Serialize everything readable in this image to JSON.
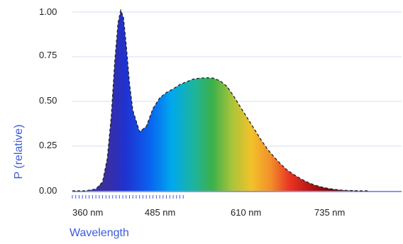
{
  "colors": {
    "axis": "#3b5bdb",
    "grid": "#d9def2",
    "label": "#3b5bdb",
    "outline": "#222222"
  },
  "chart_data": {
    "type": "area",
    "title": "",
    "xlabel": "Wavelength",
    "ylabel": "P (relative)",
    "xlim": [
      360,
      850
    ],
    "ylim": [
      0,
      1.0
    ],
    "x_ticks": [
      "360 nm",
      "485 nm",
      "610 nm",
      "735 nm"
    ],
    "y_ticks": [
      "0.00",
      "0.25",
      "0.50",
      "0.75",
      "1.00"
    ],
    "grid": true,
    "series": [
      {
        "x": [
          360,
          380,
          395,
          405,
          412,
          418,
          423,
          428,
          432,
          436,
          440,
          445,
          450,
          460,
          470,
          480,
          490,
          500,
          510,
          520,
          530,
          540,
          550,
          560,
          570,
          580,
          590,
          600,
          610,
          620,
          630,
          640,
          650,
          660,
          670,
          680,
          690,
          700,
          710,
          720,
          730,
          740,
          750,
          760,
          770,
          780,
          790,
          800
        ],
        "y": [
          0,
          0,
          0.01,
          0.05,
          0.18,
          0.42,
          0.72,
          0.94,
          1.01,
          0.97,
          0.82,
          0.6,
          0.45,
          0.33,
          0.36,
          0.46,
          0.52,
          0.55,
          0.57,
          0.595,
          0.61,
          0.625,
          0.63,
          0.632,
          0.63,
          0.615,
          0.585,
          0.53,
          0.47,
          0.41,
          0.35,
          0.29,
          0.235,
          0.19,
          0.15,
          0.115,
          0.09,
          0.067,
          0.048,
          0.033,
          0.022,
          0.014,
          0.008,
          0.004,
          0.002,
          0.001,
          0,
          0
        ]
      }
    ]
  }
}
